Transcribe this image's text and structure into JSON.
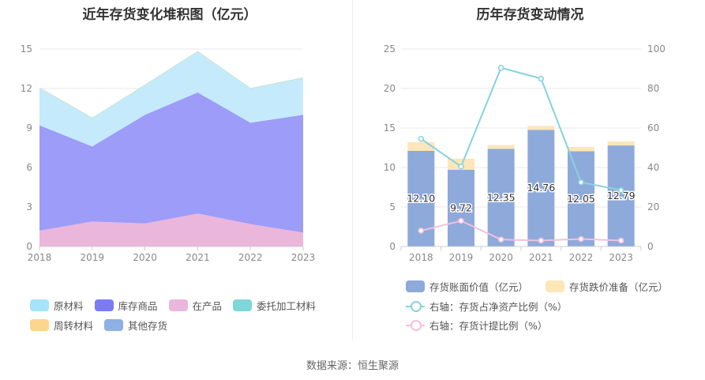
{
  "left_chart": {
    "title": "近年存货变化堆积图（亿元）",
    "legend": [
      {
        "label": "原材料",
        "color": "#a7e3fb"
      },
      {
        "label": "库存商品",
        "color": "#7b7cf2"
      },
      {
        "label": "在产品",
        "color": "#ebb6dc"
      },
      {
        "label": "委托加工材料",
        "color": "#7fd6d8"
      },
      {
        "label": "周转材料",
        "color": "#fdd58e"
      },
      {
        "label": "其他存货",
        "color": "#8eb0e3"
      }
    ]
  },
  "right_chart": {
    "title": "历年存货变动情况",
    "legend": [
      {
        "label": "存货账面价值（亿元）",
        "color": "#8eaadb",
        "kind": "bar"
      },
      {
        "label": "存货跌价准备（亿元）",
        "color": "#fde6b8",
        "kind": "bar"
      },
      {
        "label": "右轴：存货占净资产比例（%）",
        "color": "#87d3dc",
        "kind": "line"
      },
      {
        "label": "右轴：存货计提比例（%）",
        "color": "#f2c1dd",
        "kind": "line"
      }
    ]
  },
  "chart_data": [
    {
      "type": "area",
      "title": "近年存货变化堆积图（亿元）",
      "stacked": true,
      "x": [
        "2018",
        "2019",
        "2020",
        "2021",
        "2022",
        "2023"
      ],
      "ylim": [
        0,
        15
      ],
      "yticks": [
        "0",
        "3",
        "6",
        "9",
        "12",
        "15"
      ],
      "grid": true,
      "legend_position": "bottom",
      "series": [
        {
          "name": "在产品",
          "color": "#ebb6dc",
          "values": [
            1.2,
            1.9,
            1.75,
            2.5,
            1.7,
            1.05
          ]
        },
        {
          "name": "库存商品",
          "color": "#9d9cf8",
          "values": [
            8.0,
            5.7,
            8.25,
            9.2,
            7.7,
            8.95
          ]
        },
        {
          "name": "原材料",
          "color": "#c4eafc",
          "values": [
            2.85,
            2.15,
            2.25,
            3.1,
            2.6,
            2.8
          ]
        },
        {
          "name": "委托加工材料",
          "color": "#7fd6d8",
          "values": [
            0.02,
            0.02,
            0.02,
            0.02,
            0.02,
            0.02
          ]
        },
        {
          "name": "周转材料",
          "color": "#fdd58e",
          "values": [
            0.02,
            0.02,
            0.02,
            0.02,
            0.02,
            0.02
          ]
        },
        {
          "name": "其他存货",
          "color": "#8eb0e3",
          "values": [
            0.0,
            0.0,
            0.0,
            0.0,
            0.0,
            0.0
          ]
        }
      ]
    },
    {
      "type": "bar",
      "title": "历年存货变动情况",
      "stacked": true,
      "categories": [
        "2018",
        "2019",
        "2020",
        "2021",
        "2022",
        "2023"
      ],
      "ylim": [
        0,
        25
      ],
      "yticks": [
        "0",
        "5",
        "10",
        "15",
        "20",
        "25"
      ],
      "y2lim": [
        0,
        100
      ],
      "y2ticks": [
        "0",
        "20",
        "40",
        "60",
        "80",
        "100"
      ],
      "grid": true,
      "legend_position": "bottom",
      "series": [
        {
          "name": "存货账面价值（亿元）",
          "axis": "left",
          "color": "#8eaadb",
          "values": [
            12.1,
            9.72,
            12.35,
            14.76,
            12.05,
            12.79
          ],
          "labels": [
            "12.10",
            "9.72",
            "12.35",
            "14.76",
            "12.05",
            "12.79"
          ]
        },
        {
          "name": "存货跌价准备（亿元）",
          "axis": "left",
          "color": "#fde6b8",
          "values": [
            1.1,
            1.4,
            0.5,
            0.5,
            0.55,
            0.5
          ]
        },
        {
          "name": "右轴：存货占净资产比例（%）",
          "axis": "right",
          "type": "line",
          "color": "#87d3dc",
          "values": [
            54.5,
            40.5,
            90.5,
            85.0,
            32.5,
            28.5
          ]
        },
        {
          "name": "右轴：存货计提比例（%）",
          "axis": "right",
          "type": "line",
          "color": "#f2c1dd",
          "values": [
            8.0,
            13.0,
            3.5,
            3.0,
            3.8,
            3.0
          ]
        }
      ]
    }
  ],
  "source": "数据来源：恒生聚源"
}
